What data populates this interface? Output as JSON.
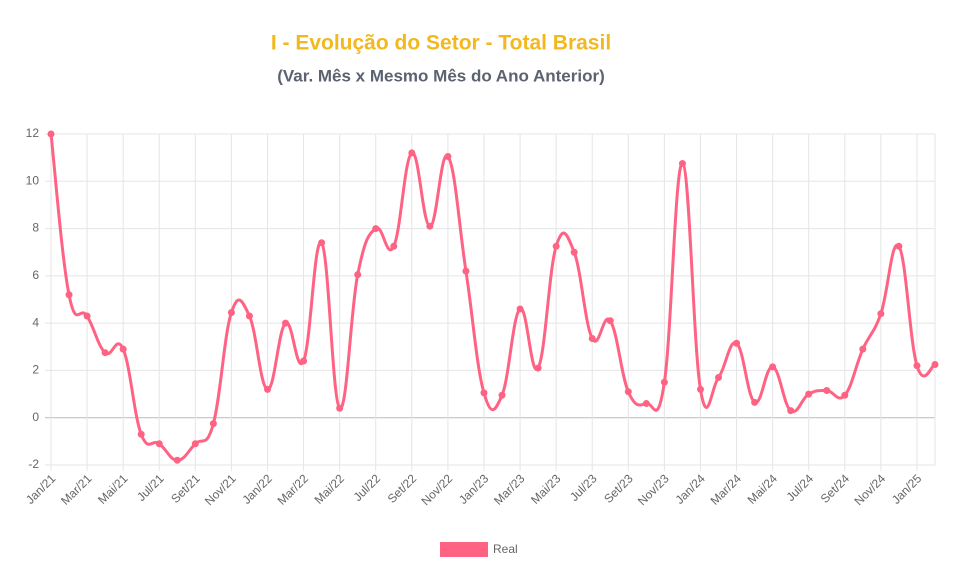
{
  "chart_data": {
    "type": "line",
    "title": "I - Evolução do Setor - Total Brasil",
    "subtitle": "(Var. Mês x Mesmo Mês do Ano Anterior)",
    "categories": [
      "Jan/21",
      null,
      "Mar/21",
      null,
      "Mai/21",
      null,
      "Jul/21",
      null,
      "Set/21",
      null,
      "Nov/21",
      null,
      "Jan/22",
      null,
      "Mar/22",
      null,
      "Mai/22",
      null,
      "Jul/22",
      null,
      "Set/22",
      null,
      "Nov/22",
      null,
      "Jan/23",
      null,
      "Mar/23",
      null,
      "Mai/23",
      null,
      "Jul/23",
      null,
      "Set/23",
      null,
      "Nov/23",
      null,
      "Jan/24",
      null,
      "Mar/24",
      null,
      "Mai/24",
      null,
      "Jul/24",
      null,
      "Set/24",
      null,
      "Nov/24",
      null,
      "Jan/25",
      null
    ],
    "series": [
      {
        "name": "Real",
        "color": "#ff6384",
        "values": [
          12,
          5.2,
          4.3,
          2.75,
          2.9,
          -0.7,
          -1.1,
          -1.8,
          -1.1,
          -0.25,
          4.45,
          4.3,
          1.2,
          4.0,
          2.4,
          7.4,
          0.4,
          6.05,
          8.0,
          7.25,
          11.2,
          8.1,
          11.05,
          6.2,
          1.05,
          0.95,
          4.6,
          2.1,
          7.25,
          7.0,
          3.35,
          4.1,
          1.1,
          0.6,
          1.5,
          10.75,
          1.2,
          1.7,
          3.15,
          0.65,
          2.15,
          0.3,
          1.0,
          1.15,
          0.95,
          2.9,
          4.4,
          7.25,
          2.2,
          2.25
        ]
      }
    ],
    "ylim": [
      -2,
      12
    ],
    "yticks": [
      -2,
      0,
      2,
      4,
      6,
      8,
      10,
      12
    ],
    "grid": true,
    "legend": "bottom"
  }
}
